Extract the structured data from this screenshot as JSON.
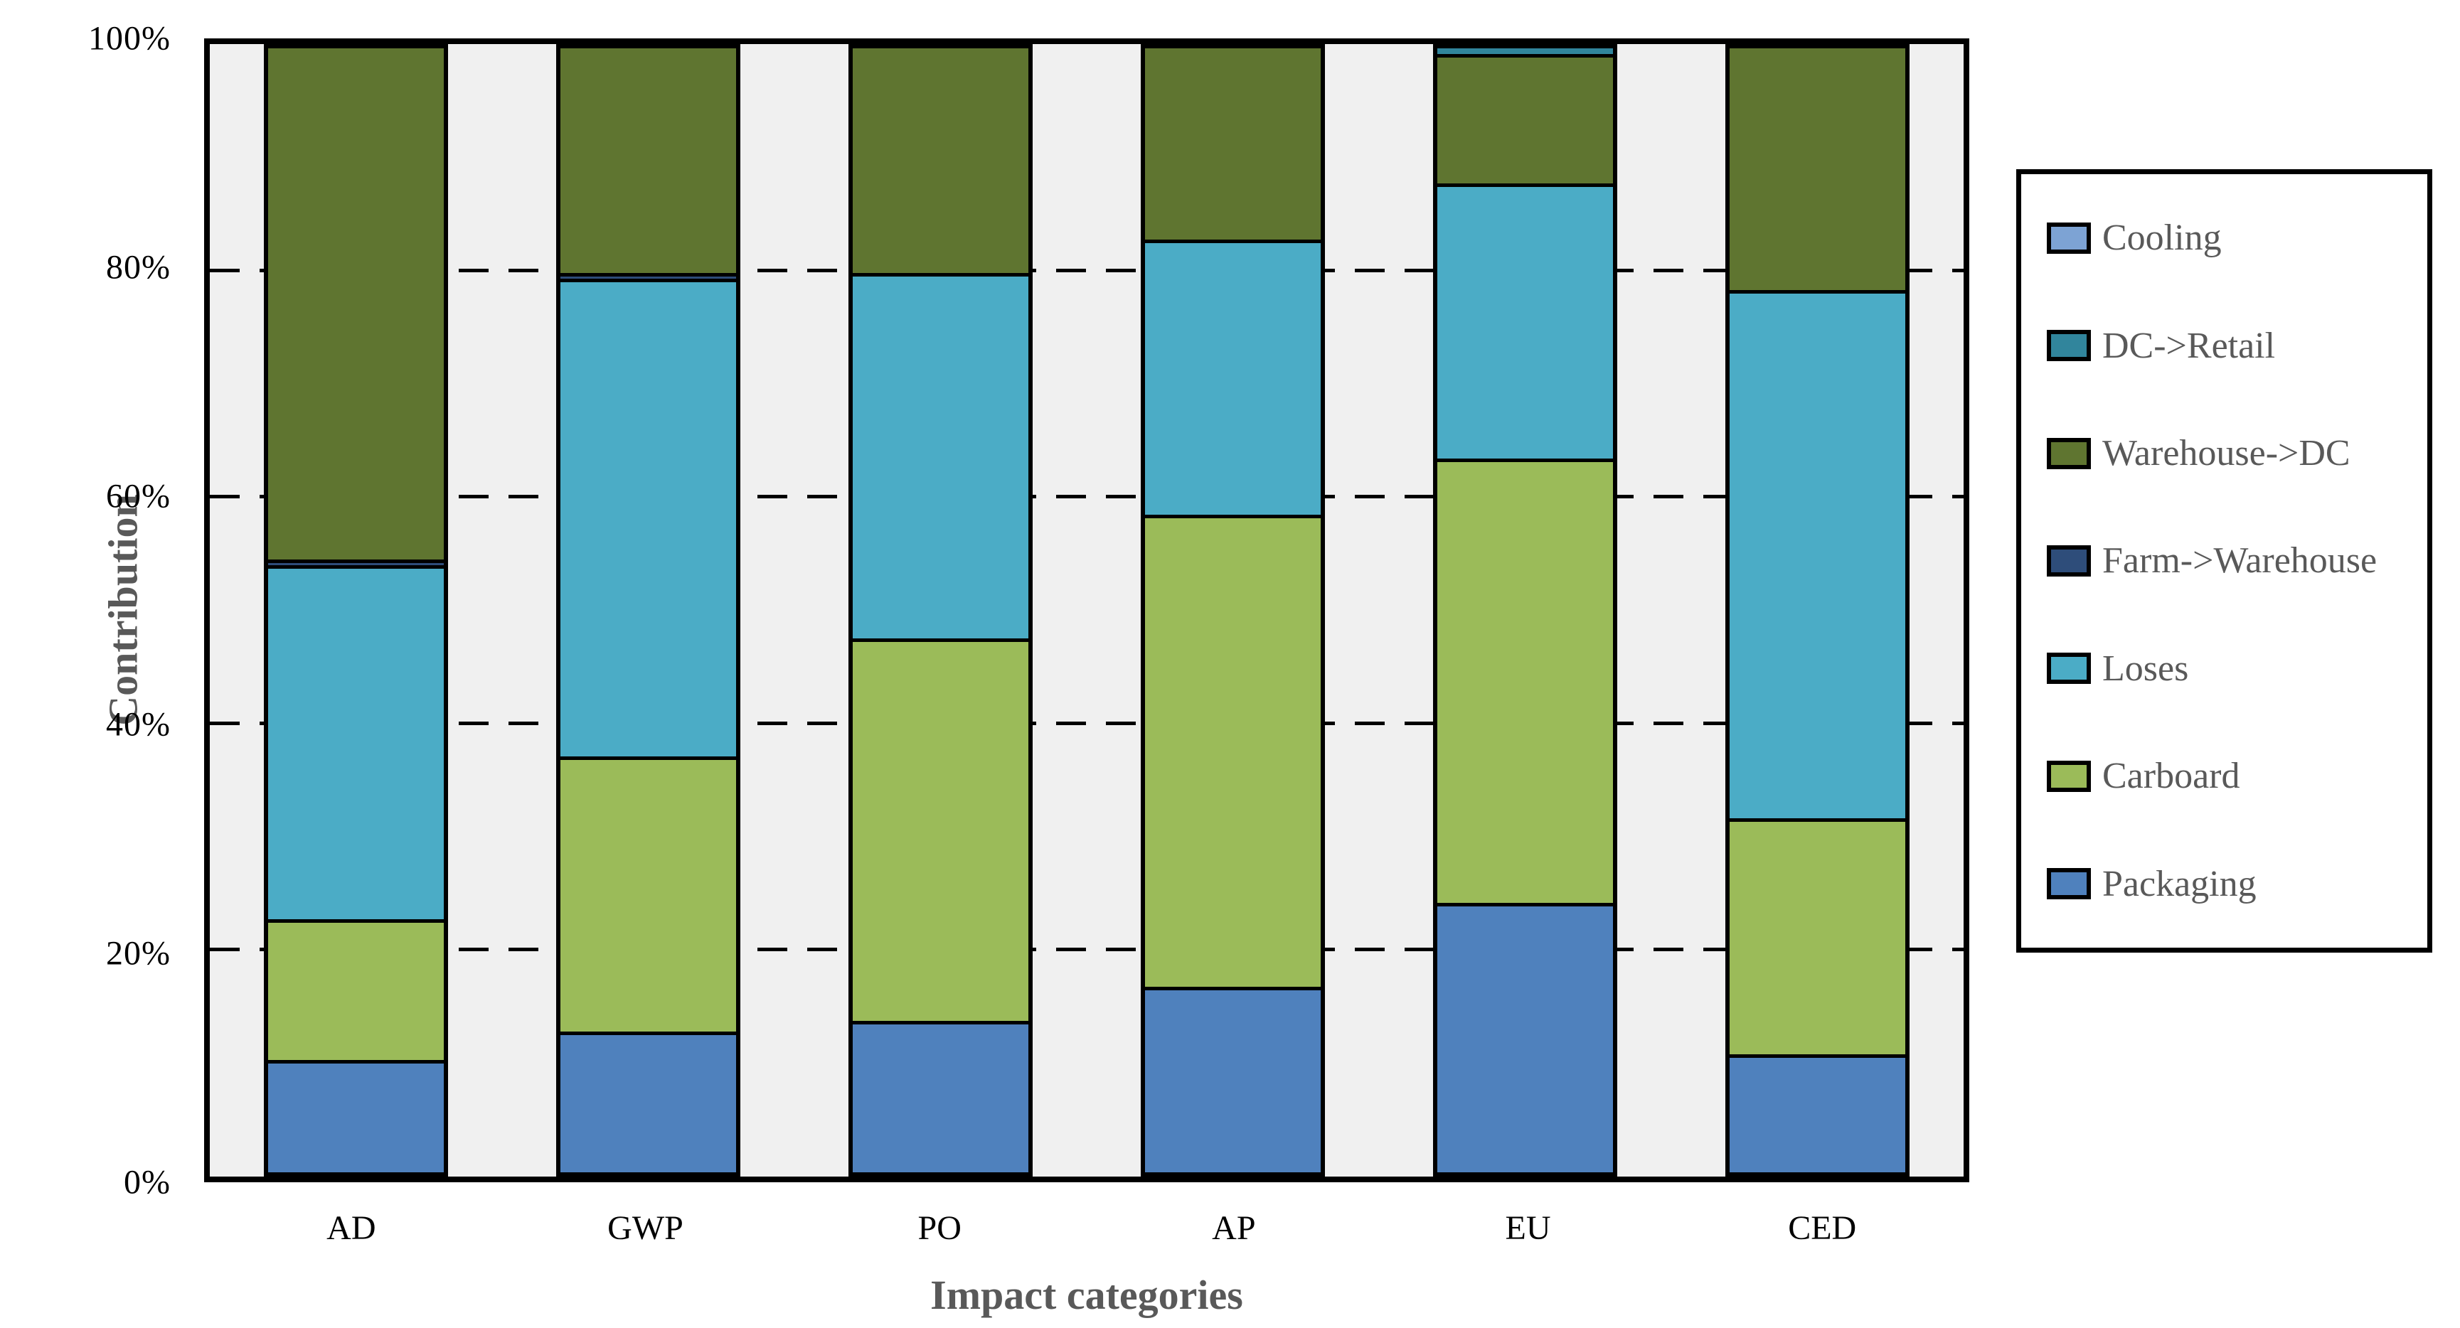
{
  "chart_data": {
    "type": "bar",
    "subtype": "stacked-100-percent",
    "title": "",
    "xlabel": "Impact categories",
    "ylabel": "Contribution",
    "categories": [
      "AD",
      "GWP",
      "PO",
      "AP",
      "EU",
      "CED"
    ],
    "y_ticks": [
      "0%",
      "20%",
      "40%",
      "60%",
      "80%",
      "100%"
    ],
    "y_tick_values": [
      0,
      20,
      40,
      60,
      80,
      100
    ],
    "ylim": [
      0,
      100
    ],
    "grid": "horizontal-dashed-at-20-40-60-80",
    "legend_position": "right",
    "plot_background": "#f0f0f0",
    "series": [
      {
        "name": "Cooling",
        "color": "#7da3d4",
        "values": [
          0,
          0,
          0,
          0,
          0,
          0
        ]
      },
      {
        "name": "DC->Retail",
        "color": "#31859c",
        "values": [
          0,
          0,
          0,
          0,
          0.5,
          0
        ]
      },
      {
        "name": "Warehouse->DC",
        "color": "#5f7530",
        "values": [
          45.5,
          20,
          20,
          17,
          11.5,
          21.5
        ]
      },
      {
        "name": "Farm->Warehouse",
        "color": "#2e4d7a",
        "values": [
          0.5,
          0.5,
          0,
          0,
          0,
          0
        ]
      },
      {
        "name": "Loses",
        "color": "#4bacc6",
        "values": [
          31.5,
          42.5,
          32.5,
          24.5,
          24.5,
          47
        ]
      },
      {
        "name": "Carboard",
        "color": "#9bbb59",
        "values": [
          12.5,
          24.5,
          34,
          42,
          39.5,
          21
        ]
      },
      {
        "name": "Packaging",
        "color": "#4f81bd",
        "values": [
          10,
          12.5,
          13.5,
          16.5,
          24,
          10.5
        ]
      }
    ]
  }
}
